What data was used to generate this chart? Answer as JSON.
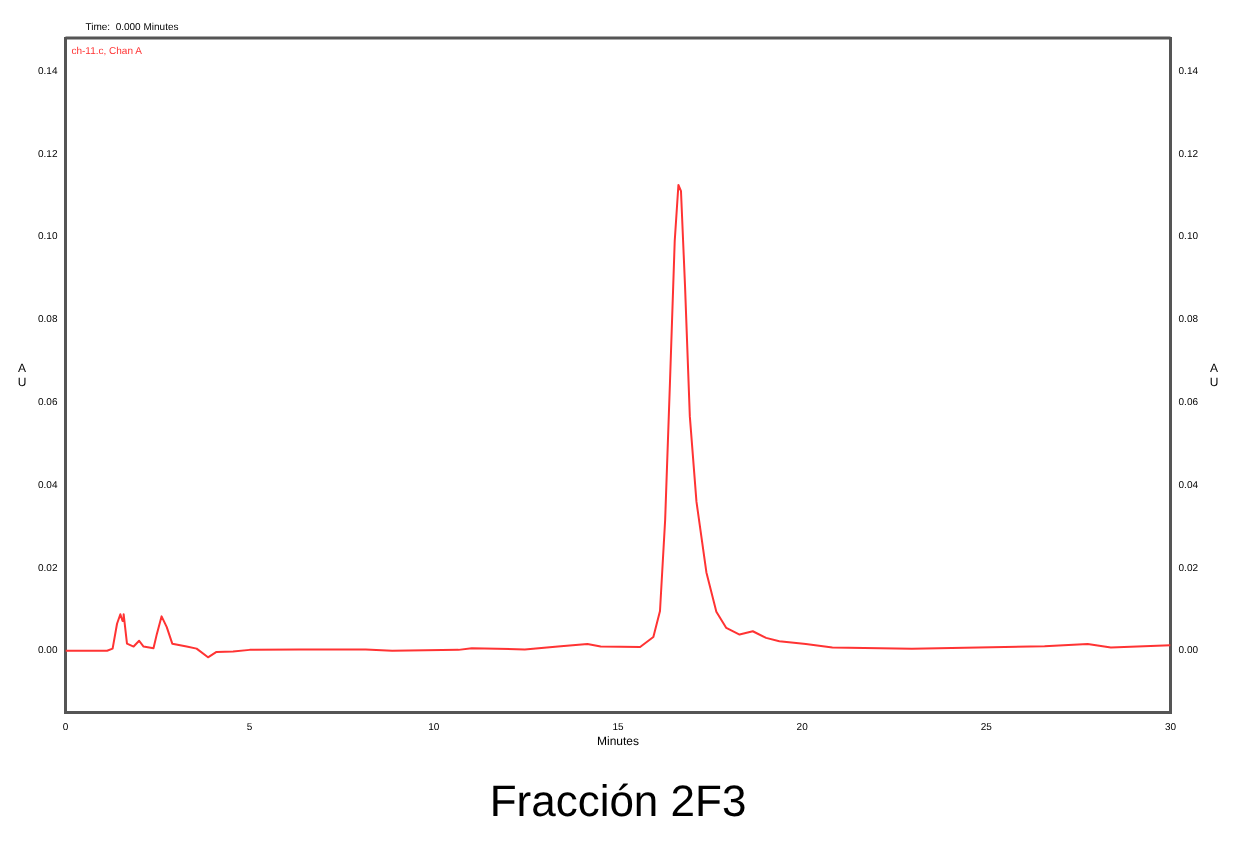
{
  "chart_data": {
    "type": "line",
    "title": "Fracción 2F3",
    "xlabel": "Minutes",
    "ylabel": "AU",
    "y2label": "AU",
    "annotations": [
      "Time:  0.000 Minutes"
    ],
    "legend": "top left",
    "marker": "none",
    "line_style": "solid",
    "xlim": [
      0,
      30
    ],
    "xticks": [
      0,
      5,
      10,
      15,
      20,
      25,
      30
    ],
    "ylim": [
      -0.015,
      0.148
    ],
    "yticks": [
      {
        "value": 0,
        "label": "0.00"
      },
      {
        "value": 0.02,
        "label": "0.02"
      },
      {
        "value": 0.04,
        "label": "0.04"
      },
      {
        "value": 0.06,
        "label": "0.06"
      },
      {
        "value": 0.08,
        "label": "0.08"
      },
      {
        "value": 0.1,
        "label": "0.10"
      },
      {
        "value": 0.12,
        "label": "0.12"
      },
      {
        "value": 0.14,
        "label": "0.14"
      }
    ],
    "y2lim": [
      -0.015,
      0.148
    ],
    "y2ticks": [
      {
        "value": 0,
        "label": "0.00"
      },
      {
        "value": 0.02,
        "label": "0.02"
      },
      {
        "value": 0.04,
        "label": "0.04"
      },
      {
        "value": 0.06,
        "label": "0.06"
      },
      {
        "value": 0.08,
        "label": "0.08"
      },
      {
        "value": 0.1,
        "label": "0.10"
      },
      {
        "value": 0.12,
        "label": "0.12"
      },
      {
        "value": 0.14,
        "label": "0.14"
      }
    ],
    "series": [
      {
        "name": "ch-11.c, Chan A",
        "color": "#ff3333",
        "x": [
          0,
          1.13,
          1.28,
          1.4,
          1.49,
          1.55,
          1.58,
          1.67,
          1.85,
          2.0,
          2.12,
          2.39,
          2.48,
          2.61,
          2.75,
          2.9,
          3.29,
          3.56,
          3.87,
          4.1,
          4.55,
          5,
          6.35,
          8.15,
          8.87,
          10.67,
          11.03,
          12.47,
          13.37,
          14.17,
          14.53,
          15.6,
          15.96,
          16.14,
          16.28,
          16.41,
          16.54,
          16.64,
          16.71,
          16.82,
          16.95,
          17.13,
          17.4,
          17.67,
          17.94,
          18.3,
          18.66,
          19.02,
          19.38,
          20.1,
          20.82,
          22.98,
          26.58,
          27.75,
          28.38,
          30
        ],
        "values": [
          0,
          0,
          0.0005,
          0.0065,
          0.0088,
          0.0072,
          0.0088,
          0.0017,
          0.001,
          0.0024,
          0.001,
          0.0006,
          0.004,
          0.0083,
          0.0057,
          0.0017,
          0.001,
          0.0005,
          -0.0016,
          -0.0003,
          -0.0002,
          0.0002,
          0.0003,
          0.0003,
          0,
          0.0002,
          0.0006,
          0.0003,
          0.001,
          0.0016,
          0.001,
          0.0009,
          0.0033,
          0.0096,
          0.0316,
          0.0646,
          0.099,
          0.1125,
          0.111,
          0.088,
          0.0566,
          0.036,
          0.0189,
          0.0094,
          0.0055,
          0.0039,
          0.0047,
          0.0031,
          0.0023,
          0.0016,
          0.0008,
          0.0005,
          0.0011,
          0.0016,
          0.0008,
          0.0013
        ]
      }
    ]
  }
}
